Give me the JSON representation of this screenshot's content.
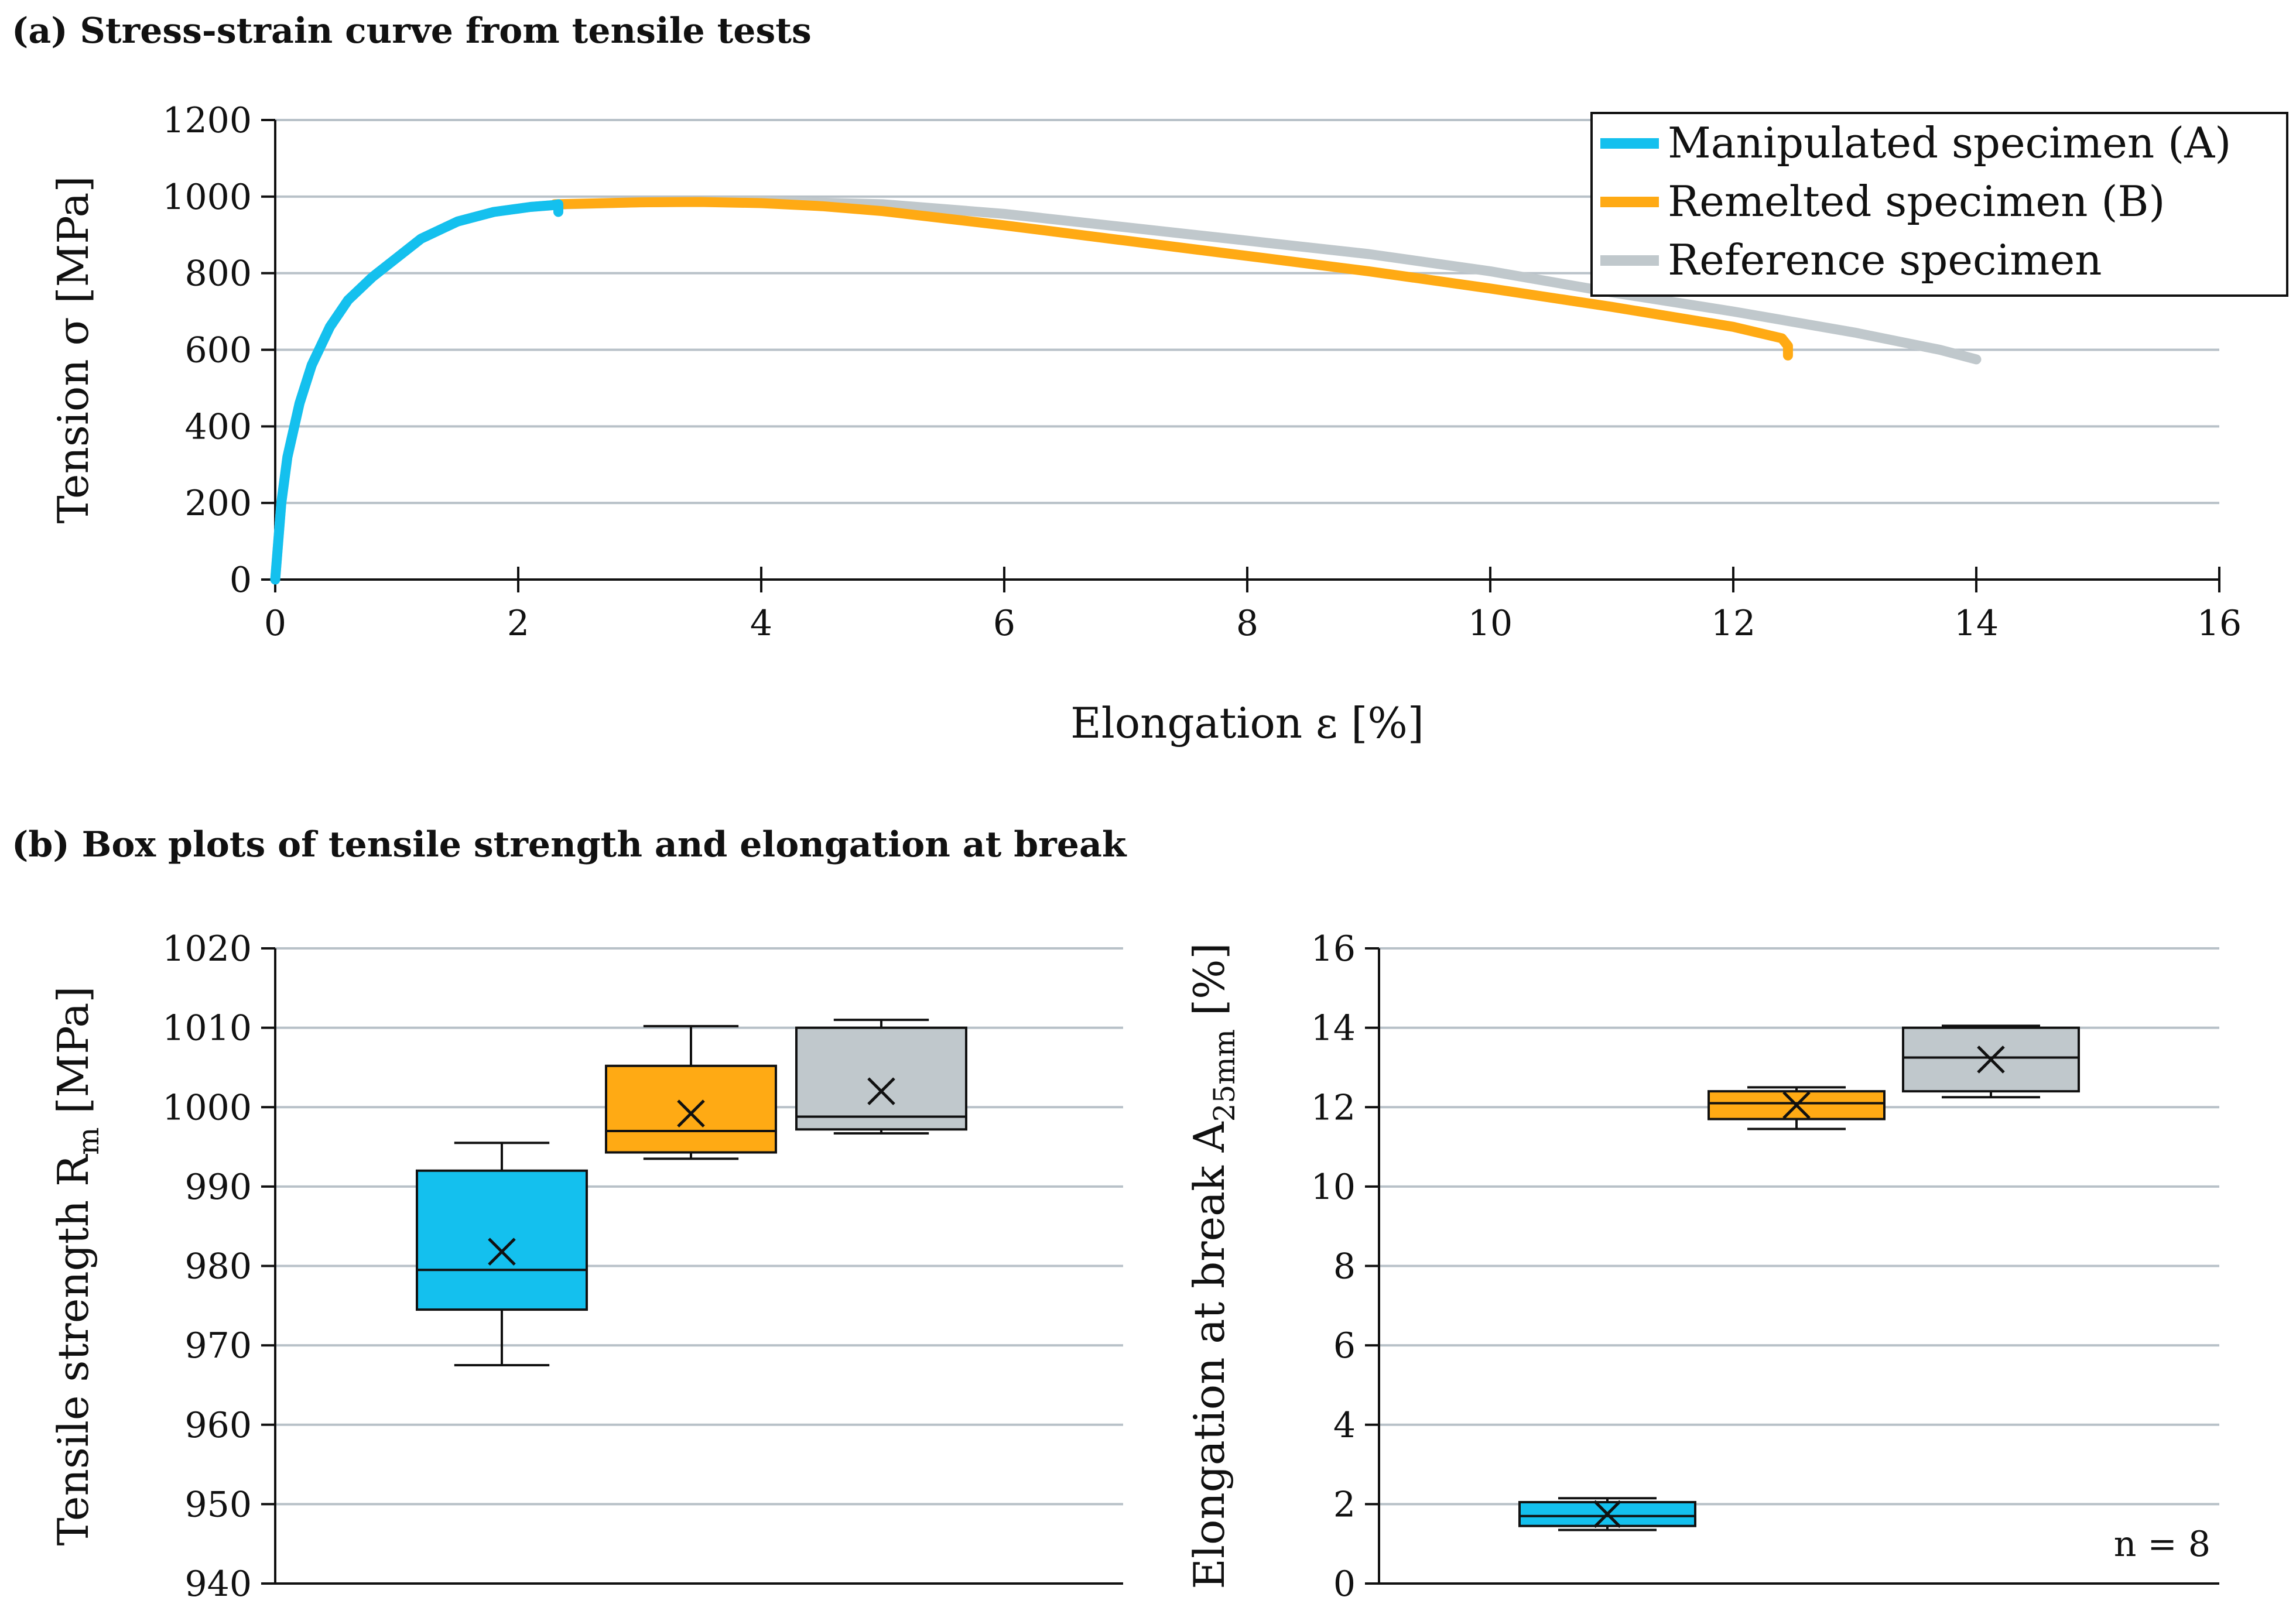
{
  "panel_a_title": "(a) Stress-strain curve from tensile tests",
  "panel_b_title": "(b) Box plots of tensile strength and elongation at break",
  "colors": {
    "manipulated": "#14c0ee",
    "remelted": "#ffaa14",
    "reference": "#c0c8cc",
    "grid": "#b8c1c8"
  },
  "chart_data": [
    {
      "type": "line",
      "title": "(a) Stress-strain curve from tensile tests",
      "xlabel": "Elongation ε [%]",
      "ylabel": "Tension σ [MPa]",
      "xlim": [
        0,
        16
      ],
      "ylim": [
        0,
        1200
      ],
      "xticks": [
        0,
        2,
        4,
        6,
        8,
        10,
        12,
        14,
        16
      ],
      "yticks": [
        0,
        200,
        400,
        600,
        800,
        1000,
        1200
      ],
      "legend": "top-right",
      "series": [
        {
          "name": "Manipulated specimen (A)",
          "color": "#14c0ee",
          "x": [
            0,
            0.05,
            0.1,
            0.2,
            0.3,
            0.45,
            0.6,
            0.8,
            1.0,
            1.2,
            1.5,
            1.8,
            2.1,
            2.3,
            2.33,
            2.33
          ],
          "y": [
            0,
            200,
            320,
            460,
            560,
            660,
            730,
            790,
            840,
            890,
            935,
            960,
            973,
            978,
            980,
            960
          ]
        },
        {
          "name": "Remelted specimen (B)",
          "color": "#ffaa14",
          "x": [
            2.3,
            3.0,
            3.5,
            4.0,
            4.5,
            5.0,
            6.0,
            7.0,
            8.0,
            9.0,
            10.0,
            11.0,
            12.0,
            12.4,
            12.45,
            12.45
          ],
          "y": [
            980,
            985,
            986,
            983,
            975,
            962,
            925,
            885,
            845,
            805,
            760,
            712,
            660,
            630,
            610,
            585
          ]
        },
        {
          "name": "Reference specimen",
          "color": "#c0c8cc",
          "x": [
            0,
            0.05,
            0.1,
            0.2,
            0.3,
            0.45,
            0.6,
            0.8,
            1.0,
            1.2,
            1.5,
            1.8,
            2.1,
            2.4,
            3.0,
            4.0,
            5.0,
            6.0,
            7.0,
            8.0,
            9.0,
            10.0,
            11.0,
            12.0,
            13.0,
            13.7,
            14.0
          ],
          "y": [
            0,
            200,
            320,
            460,
            560,
            660,
            730,
            790,
            840,
            890,
            935,
            960,
            973,
            980,
            985,
            988,
            980,
            955,
            920,
            885,
            850,
            805,
            750,
            700,
            645,
            600,
            575
          ]
        }
      ]
    },
    {
      "type": "box",
      "ylabel": "Tensile strength R",
      "ylabel_sub": "m",
      "ylabel_suffix": " [MPa]",
      "ylim": [
        940,
        1020
      ],
      "yticks": [
        940,
        950,
        960,
        970,
        980,
        990,
        1000,
        1010,
        1020
      ],
      "boxes": [
        {
          "name": "Manipulated specimen (A)",
          "color": "#14c0ee",
          "min": 967.5,
          "q1": 974.5,
          "median": 979.5,
          "q3": 992,
          "max": 995.5,
          "mean": 981.8
        },
        {
          "name": "Remelted specimen (B)",
          "color": "#ffaa14",
          "min": 993.5,
          "q1": 994.3,
          "median": 997,
          "q3": 1005.2,
          "max": 1010.2,
          "mean": 999.2
        },
        {
          "name": "Reference specimen",
          "color": "#c0c8cc",
          "min": 996.7,
          "q1": 997.2,
          "median": 998.8,
          "q3": 1010,
          "max": 1011,
          "mean": 1002
        }
      ]
    },
    {
      "type": "box",
      "ylabel": "Elongation at break A",
      "ylabel_sub": "25mm",
      "ylabel_suffix": " [%]",
      "ylim": [
        0,
        16
      ],
      "yticks": [
        0,
        2,
        4,
        6,
        8,
        10,
        12,
        14,
        16
      ],
      "annotation": "n = 8",
      "boxes": [
        {
          "name": "Manipulated specimen (A)",
          "color": "#14c0ee",
          "min": 1.35,
          "q1": 1.45,
          "median": 1.7,
          "q3": 2.05,
          "max": 2.15,
          "mean": 1.75
        },
        {
          "name": "Remelted specimen (B)",
          "color": "#ffaa14",
          "min": 11.45,
          "q1": 11.7,
          "median": 12.1,
          "q3": 12.4,
          "max": 12.5,
          "mean": 12.05
        },
        {
          "name": "Reference specimen",
          "color": "#c0c8cc",
          "min": 12.25,
          "q1": 12.4,
          "median": 13.25,
          "q3": 14,
          "max": 14.05,
          "mean": 13.2
        }
      ]
    }
  ]
}
